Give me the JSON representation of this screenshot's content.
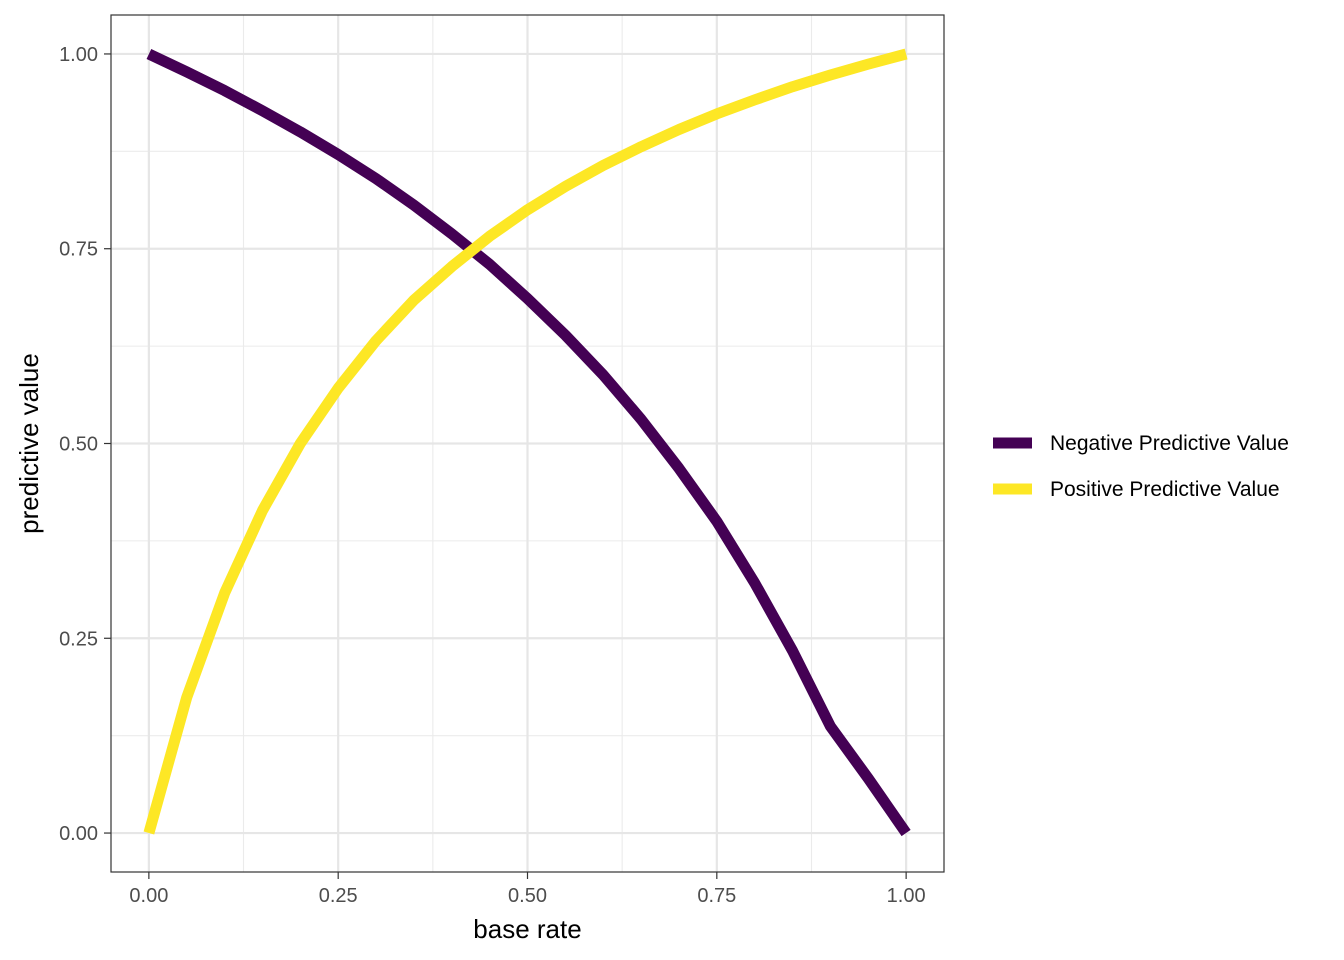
{
  "chart_data": {
    "type": "line",
    "title": "",
    "xlabel": "base rate",
    "ylabel": "predictive value",
    "xlim": [
      -0.05,
      1.05
    ],
    "ylim": [
      -0.05,
      1.05
    ],
    "x_ticks": [
      0,
      0.25,
      0.5,
      0.75,
      1
    ],
    "x_tick_labels": [
      "0.00",
      "0.25",
      "0.50",
      "0.75",
      "1.00"
    ],
    "y_ticks": [
      0,
      0.25,
      0.5,
      0.75,
      1
    ],
    "y_tick_labels": [
      "0.00",
      "0.25",
      "0.50",
      "0.75",
      "1.00"
    ],
    "grid": true,
    "legend_position": "right",
    "series": [
      {
        "name": "Negative Predictive Value",
        "color": "#440154",
        "x": [
          0,
          0.05,
          0.1,
          0.15,
          0.2,
          0.25,
          0.3,
          0.35,
          0.4,
          0.45,
          0.5,
          0.55,
          0.6,
          0.65,
          0.7,
          0.75,
          0.8,
          0.85,
          0.9,
          0.95,
          1
        ],
        "y": [
          1.0,
          0.977,
          0.953,
          0.927,
          0.9,
          0.871,
          0.84,
          0.806,
          0.769,
          0.73,
          0.686,
          0.639,
          0.588,
          0.531,
          0.468,
          0.4,
          0.321,
          0.234,
          0.137,
          0.07,
          0.0
        ]
      },
      {
        "name": "Positive Predictive Value",
        "color": "#FDE725",
        "x": [
          0,
          0.05,
          0.1,
          0.15,
          0.2,
          0.25,
          0.3,
          0.35,
          0.4,
          0.45,
          0.5,
          0.55,
          0.6,
          0.65,
          0.7,
          0.75,
          0.8,
          0.85,
          0.9,
          0.95,
          1
        ],
        "y": [
          0.0,
          0.174,
          0.308,
          0.414,
          0.5,
          0.571,
          0.632,
          0.684,
          0.727,
          0.766,
          0.8,
          0.83,
          0.857,
          0.881,
          0.903,
          0.923,
          0.941,
          0.958,
          0.973,
          0.987,
          1.0
        ]
      }
    ]
  }
}
